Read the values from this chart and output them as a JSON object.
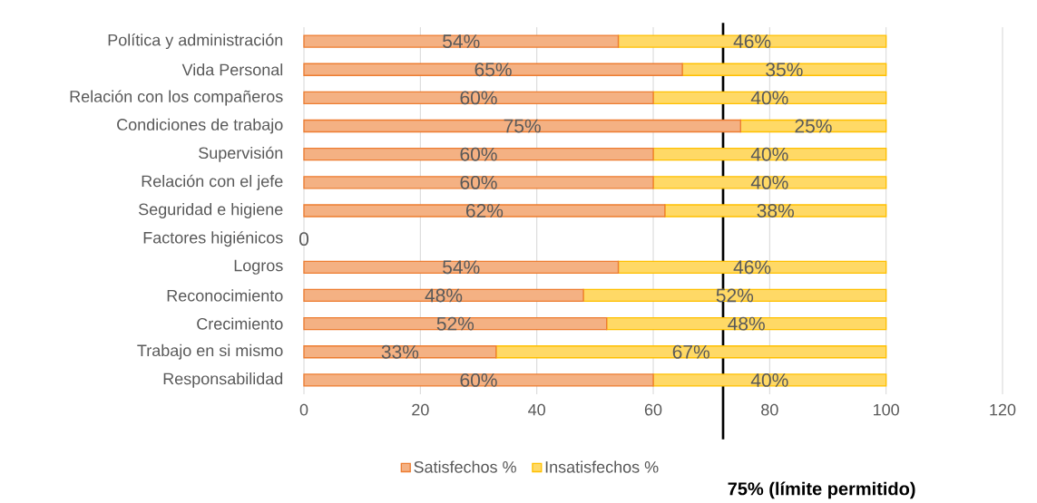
{
  "chart_data": {
    "type": "bar",
    "orientation": "horizontal",
    "stacked": true,
    "categories": [
      "Política y administración",
      "Vida Personal",
      "Relación con los compañeros",
      "Condiciones de trabajo",
      "Supervisión",
      "Relación con el jefe",
      "Seguridad e higiene",
      "Factores higiénicos",
      "Logros",
      "Reconocimiento",
      "Crecimiento",
      "Trabajo en si mismo",
      "Responsabilidad"
    ],
    "series": [
      {
        "name": "Satisfechos %",
        "color": "#f4b183",
        "values": [
          54,
          65,
          60,
          75,
          60,
          60,
          62,
          0,
          54,
          48,
          52,
          33,
          60
        ],
        "value_labels": [
          "54%",
          "65%",
          "60%",
          "75%",
          "60%",
          "60%",
          "62%",
          "0",
          "54%",
          "48%",
          "52%",
          "33%",
          "60%"
        ]
      },
      {
        "name": "Insatisfechos %",
        "color": "#ffd966",
        "values": [
          46,
          35,
          40,
          25,
          40,
          40,
          38,
          null,
          46,
          52,
          48,
          67,
          40
        ],
        "value_labels": [
          "46%",
          "35%",
          "40%",
          "25%",
          "40%",
          "40%",
          "38%",
          null,
          "46%",
          "52%",
          "48%",
          "67%",
          "40%"
        ]
      }
    ],
    "xlim": [
      0,
      120
    ],
    "xticks": [
      0,
      20,
      40,
      60,
      80,
      100,
      120
    ],
    "grid": "x",
    "legend": "bottom",
    "ref_lines": [
      {
        "axis": "x",
        "value": 72,
        "label": "75% (límite permitido)",
        "color": "#000000"
      }
    ]
  }
}
